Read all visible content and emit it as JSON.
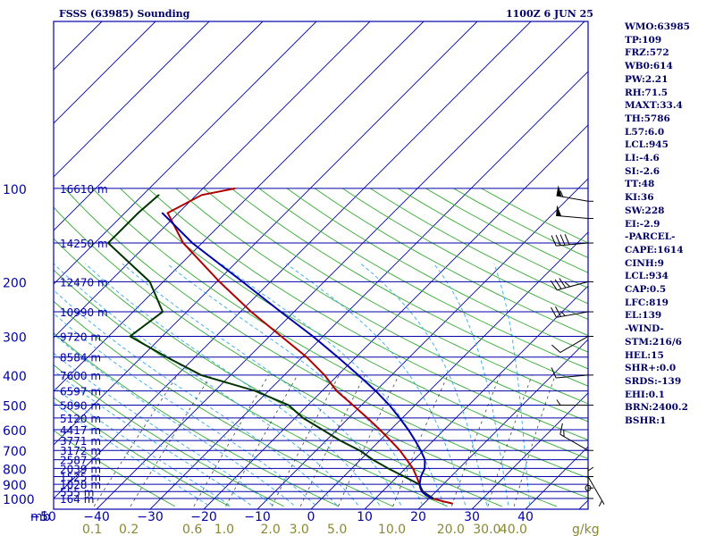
{
  "chart_data": {
    "type": "line",
    "title": "FSSS (63985) Sounding",
    "valid_time": "1100Z  6 JUN 25",
    "pressure_levels": [
      {
        "p": 100,
        "label": "100",
        "height": "16610 m"
      },
      {
        "p": 150,
        "label": "",
        "height": "14250 m"
      },
      {
        "p": 200,
        "label": "200",
        "height": "12470 m"
      },
      {
        "p": 250,
        "label": "",
        "height": "10990 m"
      },
      {
        "p": 300,
        "label": "300",
        "height": "9720 m"
      },
      {
        "p": 350,
        "label": "",
        "height": "8584 m"
      },
      {
        "p": 400,
        "label": "400",
        "height": "7600 m"
      },
      {
        "p": 450,
        "label": "",
        "height": "6597 m"
      },
      {
        "p": 500,
        "label": "500",
        "height": "5890 m"
      },
      {
        "p": 550,
        "label": "",
        "height": "5120 m"
      },
      {
        "p": 600,
        "label": "600",
        "height": "4417 m"
      },
      {
        "p": 650,
        "label": "",
        "height": "3771 m"
      },
      {
        "p": 700,
        "label": "700",
        "height": "3172 m"
      },
      {
        "p": 750,
        "label": "",
        "height": "2587 m"
      },
      {
        "p": 800,
        "label": "800",
        "height": "2039 m"
      },
      {
        "p": 850,
        "label": "",
        "height": "1525 m"
      },
      {
        "p": 900,
        "label": "900",
        "height": "1028 m"
      },
      {
        "p": 950,
        "label": "",
        "height": "555 m"
      },
      {
        "p": 1000,
        "label": "1000",
        "height": "164 m"
      }
    ],
    "yunit": "mb",
    "x_ticks": [
      -50,
      -40,
      -30,
      -20,
      -10,
      0,
      10,
      20,
      30,
      40
    ],
    "xlim": [
      -50,
      50
    ],
    "ylim": [
      100,
      1050
    ],
    "yscale": "log",
    "mixing_ratio_labels": [
      "0.1",
      "0.2",
      "0.6",
      "1.0",
      "2.0",
      "3.0",
      "5.0",
      "10.0",
      "20.0",
      "30.0",
      "40.0"
    ],
    "mixing_ratio_values": [
      0.1,
      0.2,
      0.6,
      1.0,
      2.0,
      3.0,
      5.0,
      10.0,
      20.0,
      30.0,
      40.0
    ],
    "mixing_ratio_unit": "g/kg",
    "series": [
      {
        "color": "#b00000",
        "p": [
          1038,
          1020,
          1000,
          975,
          950,
          925,
          900,
          850,
          800,
          750,
          700,
          650,
          600,
          550,
          500,
          450,
          400,
          350,
          300,
          250,
          200,
          150,
          120,
          105,
          100
        ],
        "t": [
          25.3,
          23.0,
          20.6,
          18.8,
          17.4,
          16.4,
          15.6,
          13.6,
          11.4,
          8.6,
          5.6,
          2.0,
          -2.0,
          -6.5,
          -11.6,
          -17.3,
          -22.5,
          -29.2,
          -37.8,
          -48.0,
          -59.5,
          -73.5,
          -82.0,
          -79.0,
          -74.0
        ]
      },
      {
        "color": "#003300",
        "p": [
          1000,
          950,
          900,
          850,
          800,
          750,
          700,
          650,
          600,
          550,
          500,
          450,
          400,
          350,
          300,
          250,
          200,
          150,
          120,
          105
        ],
        "t": [
          20.8,
          17.6,
          15.5,
          11.3,
          6.8,
          2.3,
          -1.9,
          -7.4,
          -12.7,
          -18.5,
          -23.6,
          -32.5,
          -45.5,
          -55.3,
          -66.0,
          -64.5,
          -72.5,
          -87.5,
          -87.5,
          -87.0
        ]
      },
      {
        "color": "#0000aa",
        "p": [
          1000,
          975,
          950,
          900,
          850,
          800,
          750,
          700,
          650,
          600,
          550,
          500,
          450,
          400,
          350,
          300,
          250,
          200,
          150,
          120
        ],
        "t": [
          20.6,
          18.8,
          17.4,
          15.6,
          14.4,
          13.6,
          12.0,
          9.5,
          6.6,
          3.3,
          -0.5,
          -4.8,
          -10.0,
          -16.2,
          -23.4,
          -31.9,
          -42.5,
          -55.2,
          -71.8,
          -83.0
        ]
      }
    ],
    "wind_barbs": [
      {
        "p": 110,
        "dir": 280,
        "spd": 55
      },
      {
        "p": 125,
        "dir": 275,
        "spd": 50
      },
      {
        "p": 150,
        "dir": 265,
        "spd": 40
      },
      {
        "p": 200,
        "dir": 255,
        "spd": 35
      },
      {
        "p": 250,
        "dir": 260,
        "spd": 25
      },
      {
        "p": 300,
        "dir": 240,
        "spd": 10
      },
      {
        "p": 400,
        "dir": 265,
        "spd": 10
      },
      {
        "p": 500,
        "dir": 270,
        "spd": 5
      },
      {
        "p": 700,
        "dir": 300,
        "spd": 15
      },
      {
        "p": 850,
        "dir": 150,
        "spd": 5
      },
      {
        "p": 925,
        "dir": 0,
        "spd": 0
      },
      {
        "p": 1000,
        "dir": 0,
        "spd": 5
      }
    ],
    "indices": [
      "WMO:63985",
      "TP:109",
      "FRZ:572",
      "WB0:614",
      "PW:2.21",
      "RH:71.5",
      "MAXT:33.4",
      "TH:5786",
      "L57:6.0",
      "LCL:945",
      "LI:-4.6",
      "SI:-2.6",
      "TT:48",
      "KI:36",
      "SW:228",
      "EI:-2.9",
      "-PARCEL-",
      "CAPE:1614",
      "CINH:9",
      "LCL:934",
      "CAP:0.5",
      "LFC:819",
      "EL:139",
      "-WIND-",
      "STM:216/6",
      "HEL:15",
      "SHR+:0.0",
      "SRDS:-139",
      "EHI:0.1",
      "BRN:2400.2",
      "BSHR:1"
    ],
    "colors": {
      "isobar": "#0000aa",
      "isotherm": "#0000aa",
      "dry_adiabat": "#33aa33",
      "moist_adiabat": "#33aaee",
      "mixing_ratio": "#444444",
      "label": "#0000aa",
      "mixing_ratio_label": "#888833"
    }
  }
}
